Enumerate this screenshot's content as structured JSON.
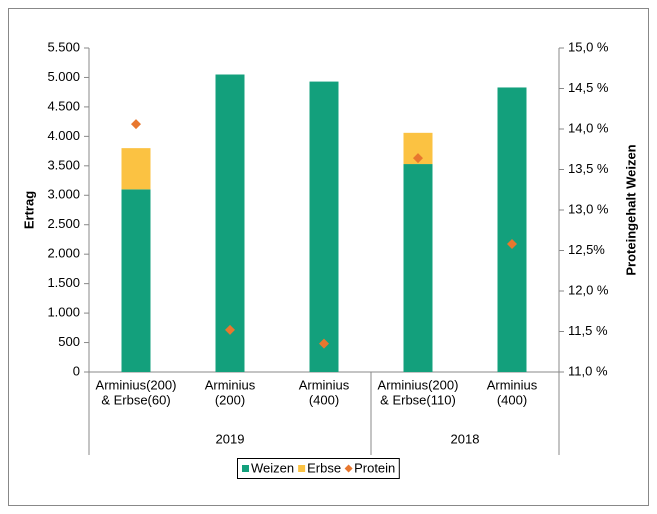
{
  "chart_data": {
    "type": "stacked-bar-scatter",
    "ylabel": "Ertrag",
    "y2label": "Proteingehalt Weizen",
    "category_groups": [
      {
        "name": "2019",
        "categories": [
          [
            "Arminius(200)",
            "& Erbse(60)"
          ],
          [
            "Arminius",
            "(200)"
          ],
          [
            "Arminius",
            "(400)"
          ]
        ]
      },
      {
        "name": "2018",
        "categories": [
          [
            "Arminius(200)",
            "& Erbse(110)"
          ],
          [
            "Arminius",
            "(400)"
          ]
        ]
      }
    ],
    "series": [
      {
        "name": "Weizen",
        "color": "#13a07c",
        "kind": "bar",
        "values": [
          3100,
          5050,
          4930,
          3530,
          4830
        ]
      },
      {
        "name": "Erbse",
        "color": "#fbc242",
        "kind": "bar",
        "values": [
          700,
          null,
          null,
          530,
          null
        ]
      },
      {
        "name": "Protein",
        "color": "#e8772e",
        "kind": "marker",
        "axis": "y2",
        "values": [
          14.06,
          11.52,
          11.35,
          13.64,
          12.58
        ]
      }
    ],
    "ylim": [
      0,
      5500
    ],
    "yticks": [
      0,
      500,
      {
        "value": 1000,
        "label": "1.000"
      },
      {
        "value": 1500,
        "label": "1.500"
      },
      {
        "value": 2000,
        "label": "2.000"
      },
      {
        "value": 2500,
        "label": "2.500"
      },
      {
        "value": 3000,
        "label": "3.000"
      },
      {
        "value": 3500,
        "label": "3.500"
      },
      {
        "value": 4000,
        "label": "4.000"
      },
      {
        "value": 4500,
        "label": "4.500"
      },
      {
        "value": 5000,
        "label": "5.000"
      },
      {
        "value": 5500,
        "label": "5.500"
      }
    ],
    "y2lim": [
      11,
      15
    ],
    "y2ticks": [
      {
        "value": 11,
        "label": "11,0 %"
      },
      {
        "value": 11.5,
        "label": "11,5 %"
      },
      {
        "value": 12,
        "label": "12,0 %"
      },
      {
        "value": 12.5,
        "label": "12,5%"
      },
      {
        "value": 13,
        "label": "13,0 %"
      },
      {
        "value": 13.5,
        "label": "13,5 %"
      },
      {
        "value": 14,
        "label": "14,0 %"
      },
      {
        "value": 14.5,
        "label": "14,5 %"
      },
      {
        "value": 15,
        "label": "15,0 %"
      }
    ],
    "legend": "bottom"
  }
}
